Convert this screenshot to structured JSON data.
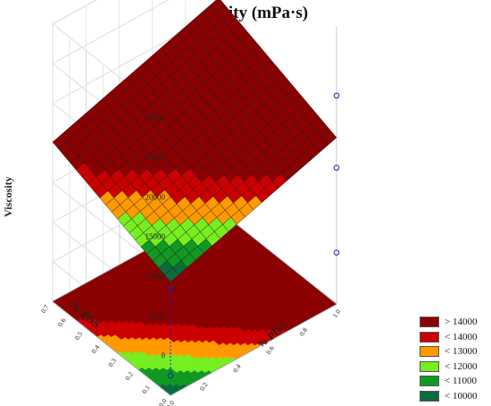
{
  "chart_data": {
    "type": "surface3d",
    "title": "Viscosity (mPa·s)",
    "x_axis": {
      "label": "% PEC",
      "range": [
        0.0,
        1.0
      ],
      "ticks": [
        "0.0",
        "0.2",
        "0.4",
        "0.6",
        "0.8",
        "1.0"
      ]
    },
    "y_axis": {
      "label": "% POS",
      "range": [
        0.0,
        0.7
      ],
      "ticks": [
        "0.0",
        "0.1",
        "0.2",
        "0.3",
        "0.4",
        "0.5",
        "0.6",
        "0.7"
      ]
    },
    "z_axis": {
      "label": "Viscosity",
      "range": [
        0,
        30000
      ],
      "ticks": [
        "0",
        "5000",
        "10000",
        "15000",
        "20000",
        "25000",
        "30000"
      ]
    },
    "surface_model": {
      "intercept": 9300,
      "coef_pec": 6700,
      "coef_pos": 5800
    },
    "observed_points": [
      {
        "pec": 1.0,
        "pos": 0.0,
        "viscosity": 12200
      },
      {
        "pec": 1.0,
        "pos": 0.0,
        "viscosity": 1500
      },
      {
        "pec": 1.0,
        "pos": 0.0,
        "viscosity": 21300
      },
      {
        "pec": 0.0,
        "pos": 0.0,
        "viscosity": 8500
      }
    ],
    "legend": [
      {
        "label": "> 14000",
        "color": "#8b0000"
      },
      {
        "label": "< 14000",
        "color": "#cc0000"
      },
      {
        "label": "< 13000",
        "color": "#ff9900"
      },
      {
        "label": "< 12000",
        "color": "#77ee22"
      },
      {
        "label": "< 11000",
        "color": "#119922"
      },
      {
        "label": "< 10000",
        "color": "#0b6b3e"
      }
    ],
    "grid": true,
    "legend_position": "bottom-right"
  }
}
